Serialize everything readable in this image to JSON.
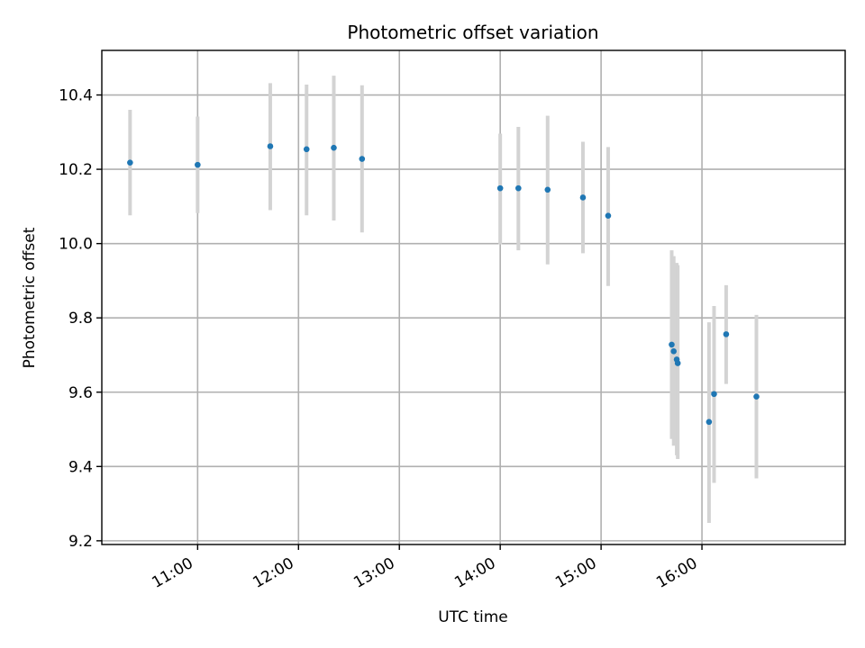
{
  "chart_data": {
    "type": "scatter",
    "title": "Photometric offset variation",
    "xlabel": "UTC time",
    "ylabel": "Photometric offset",
    "x_unit": "hours UTC",
    "xlim": [
      10.05,
      17.42
    ],
    "ylim": [
      9.19,
      10.52
    ],
    "xticks": [
      {
        "value": 11,
        "label": "11:00"
      },
      {
        "value": 12,
        "label": "12:00"
      },
      {
        "value": 13,
        "label": "13:00"
      },
      {
        "value": 14,
        "label": "14:00"
      },
      {
        "value": 15,
        "label": "15:00"
      },
      {
        "value": 16,
        "label": "16:00"
      }
    ],
    "yticks": [
      {
        "value": 9.2,
        "label": "9.2"
      },
      {
        "value": 9.4,
        "label": "9.4"
      },
      {
        "value": 9.6,
        "label": "9.6"
      },
      {
        "value": 9.8,
        "label": "9.8"
      },
      {
        "value": 10.0,
        "label": "10.0"
      },
      {
        "value": 10.2,
        "label": "10.2"
      },
      {
        "value": 10.4,
        "label": "10.4"
      }
    ],
    "grid": true,
    "legend": false,
    "point_color": "#1f77b4",
    "errorbar_color": "#d3d3d3",
    "points": [
      {
        "x": 10.33,
        "y": 10.218,
        "ylow": 10.076,
        "yhigh": 10.36
      },
      {
        "x": 11.0,
        "y": 10.212,
        "ylow": 10.082,
        "yhigh": 10.342
      },
      {
        "x": 11.72,
        "y": 10.262,
        "ylow": 10.09,
        "yhigh": 10.432
      },
      {
        "x": 12.08,
        "y": 10.254,
        "ylow": 10.076,
        "yhigh": 10.428
      },
      {
        "x": 12.35,
        "y": 10.258,
        "ylow": 10.062,
        "yhigh": 10.452
      },
      {
        "x": 12.63,
        "y": 10.228,
        "ylow": 10.03,
        "yhigh": 10.426
      },
      {
        "x": 14.0,
        "y": 10.149,
        "ylow": 9.998,
        "yhigh": 10.296
      },
      {
        "x": 14.18,
        "y": 10.149,
        "ylow": 9.982,
        "yhigh": 10.314
      },
      {
        "x": 14.47,
        "y": 10.145,
        "ylow": 9.944,
        "yhigh": 10.344
      },
      {
        "x": 14.82,
        "y": 10.124,
        "ylow": 9.974,
        "yhigh": 10.274
      },
      {
        "x": 15.07,
        "y": 10.075,
        "ylow": 9.886,
        "yhigh": 10.26
      },
      {
        "x": 15.7,
        "y": 9.728,
        "ylow": 9.474,
        "yhigh": 9.982
      },
      {
        "x": 15.72,
        "y": 9.71,
        "ylow": 9.456,
        "yhigh": 9.966
      },
      {
        "x": 15.75,
        "y": 9.688,
        "ylow": 9.43,
        "yhigh": 9.948
      },
      {
        "x": 15.76,
        "y": 9.678,
        "ylow": 9.42,
        "yhigh": 9.942
      },
      {
        "x": 16.07,
        "y": 9.52,
        "ylow": 9.248,
        "yhigh": 9.788
      },
      {
        "x": 16.12,
        "y": 9.595,
        "ylow": 9.356,
        "yhigh": 9.832
      },
      {
        "x": 16.24,
        "y": 9.756,
        "ylow": 9.622,
        "yhigh": 9.888
      },
      {
        "x": 16.54,
        "y": 9.588,
        "ylow": 9.368,
        "yhigh": 9.808
      }
    ]
  }
}
